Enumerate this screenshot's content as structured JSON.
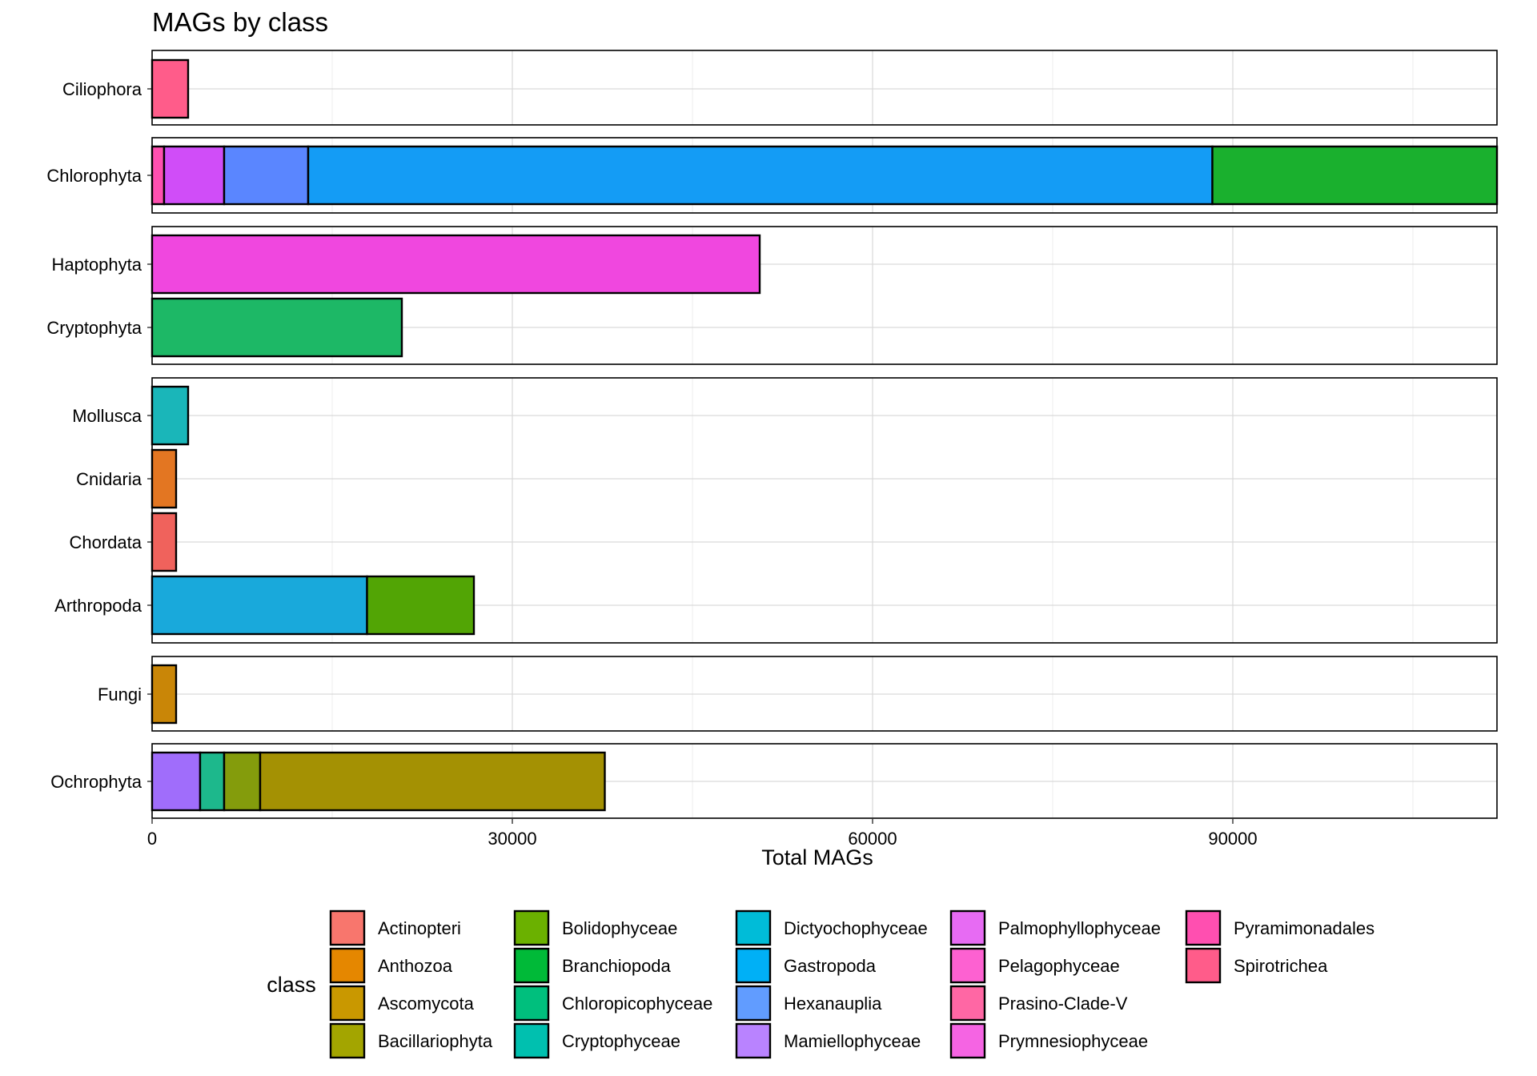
{
  "chart_data": {
    "type": "bar",
    "orientation": "horizontal",
    "stacked": true,
    "faceted": true,
    "title": "MAGs by class",
    "xlabel": "Total MAGs",
    "ylabel": "",
    "xlim": [
      0,
      112000
    ],
    "xticks": [
      0,
      30000,
      60000,
      90000
    ],
    "grid": true,
    "legend": {
      "title": "class",
      "position": "bottom",
      "items": [
        {
          "name": "Actinopteri",
          "color": "#F8766D"
        },
        {
          "name": "Anthozoa",
          "color": "#E58700"
        },
        {
          "name": "Ascomycota",
          "color": "#C99800"
        },
        {
          "name": "Bacillariophyta",
          "color": "#A3A500"
        },
        {
          "name": "Bolidophyceae",
          "color": "#6BB100"
        },
        {
          "name": "Branchiopoda",
          "color": "#00BA38"
        },
        {
          "name": "Chloropicophyceae",
          "color": "#00BF7D"
        },
        {
          "name": "Cryptophyceae",
          "color": "#00C0AF"
        },
        {
          "name": "Dictyochophyceae",
          "color": "#00BCD8"
        },
        {
          "name": "Gastropoda",
          "color": "#00B0F6"
        },
        {
          "name": "Hexanauplia",
          "color": "#619CFF"
        },
        {
          "name": "Mamiellophyceae",
          "color": "#B983FF"
        },
        {
          "name": "Palmophyllophyceae",
          "color": "#E76BF3"
        },
        {
          "name": "Pelagophyceae",
          "color": "#FD61D1"
        },
        {
          "name": "Prasino-Clade-V",
          "color": "#FF67A4"
        },
        {
          "name": "Prymnesiophyceae",
          "color": "#F564E3"
        },
        {
          "name": "Pyramimonadales",
          "color": "#FF4FB0"
        },
        {
          "name": "Spirotrichea",
          "color": "#FF5C8A"
        }
      ]
    },
    "panels": [
      {
        "rows": [
          {
            "label": "Ciliophora",
            "segments": [
              {
                "class": "Spirotrichea",
                "value": 3000,
                "color": "#FF5C8A"
              }
            ]
          }
        ]
      },
      {
        "rows": [
          {
            "label": "Chlorophyta",
            "segments": [
              {
                "class": "Pyramimonadales",
                "value": 1000,
                "color": "#FF4FB0"
              },
              {
                "class": "Prasino-Clade-V",
                "value": 5000,
                "color": "#D04DF8"
              },
              {
                "class": "Palmophyllophyceae",
                "value": 7000,
                "color": "#5A86FF"
              },
              {
                "class": "Mamiellophyceae",
                "value": 75300,
                "color": "#149CF5"
              },
              {
                "class": "Chloropicophyceae",
                "value": 23800,
                "color": "#1AB02E"
              }
            ]
          }
        ]
      },
      {
        "rows": [
          {
            "label": "Haptophyta",
            "segments": [
              {
                "class": "Prymnesiophyceae",
                "value": 50600,
                "color": "#F047DF"
              }
            ]
          },
          {
            "label": "Cryptophyta",
            "segments": [
              {
                "class": "Cryptophyceae",
                "value": 20800,
                "color": "#1DB866"
              }
            ]
          }
        ]
      },
      {
        "rows": [
          {
            "label": "Mollusca",
            "segments": [
              {
                "class": "Gastropoda",
                "value": 3000,
                "color": "#1AB6B9"
              }
            ]
          },
          {
            "label": "Cnidaria",
            "segments": [
              {
                "class": "Anthozoa",
                "value": 2000,
                "color": "#E37622"
              }
            ]
          },
          {
            "label": "Chordata",
            "segments": [
              {
                "class": "Actinopteri",
                "value": 2000,
                "color": "#F0625C"
              }
            ]
          },
          {
            "label": "Arthropoda",
            "segments": [
              {
                "class": "Hexanauplia",
                "value": 17900,
                "color": "#19A9DB"
              },
              {
                "class": "Branchiopoda",
                "value": 8900,
                "color": "#52A505"
              }
            ]
          }
        ]
      },
      {
        "rows": [
          {
            "label": "Fungi",
            "segments": [
              {
                "class": "Ascomycota",
                "value": 2000,
                "color": "#C98607"
              }
            ]
          }
        ]
      },
      {
        "rows": [
          {
            "label": "Ochrophyta",
            "segments": [
              {
                "class": "Pelagophyceae",
                "value": 4000,
                "color": "#A06DFB"
              },
              {
                "class": "Dictyochophyceae",
                "value": 2000,
                "color": "#1DB88C"
              },
              {
                "class": "Bolidophyceae",
                "value": 3000,
                "color": "#849C0C"
              },
              {
                "class": "Bacillariophyta",
                "value": 28700,
                "color": "#A49103"
              }
            ]
          }
        ]
      }
    ]
  }
}
